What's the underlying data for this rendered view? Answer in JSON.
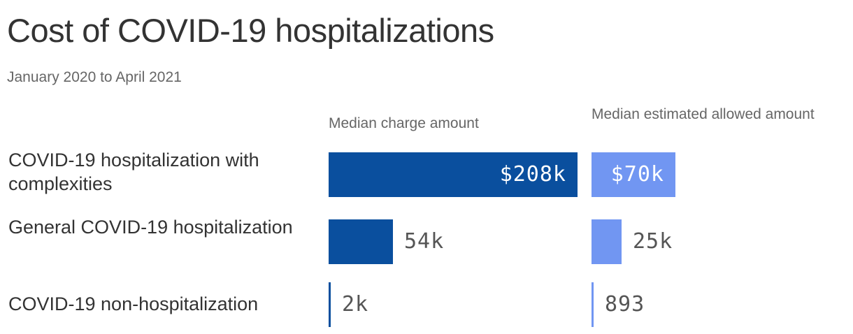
{
  "header": {
    "title": "Cost of COVID-19 hospitalizations",
    "subtitle": "January 2020 to April 2021"
  },
  "chart_data": {
    "type": "bar",
    "orientation": "horizontal",
    "title": "Cost of COVID-19 hospitalizations",
    "subtitle": "January 2020 to April 2021",
    "categories": [
      "COVID-19 hospitalization with complexities",
      "General COVID-19 hospitalization",
      "COVID-19 non-hospitalization"
    ],
    "series": [
      {
        "name": "Median charge amount",
        "color": "#0a4f9e",
        "values": [
          208000,
          54000,
          2000
        ],
        "labels": [
          "$208k",
          "54k",
          "2k"
        ]
      },
      {
        "name": "Median estimated allowed amount",
        "color": "#7196f2",
        "values": [
          70000,
          25000,
          893
        ],
        "labels": [
          "$70k",
          "25k",
          "893"
        ]
      }
    ],
    "xlim": [
      0,
      208000
    ],
    "grid": false,
    "legend": "column headers"
  }
}
